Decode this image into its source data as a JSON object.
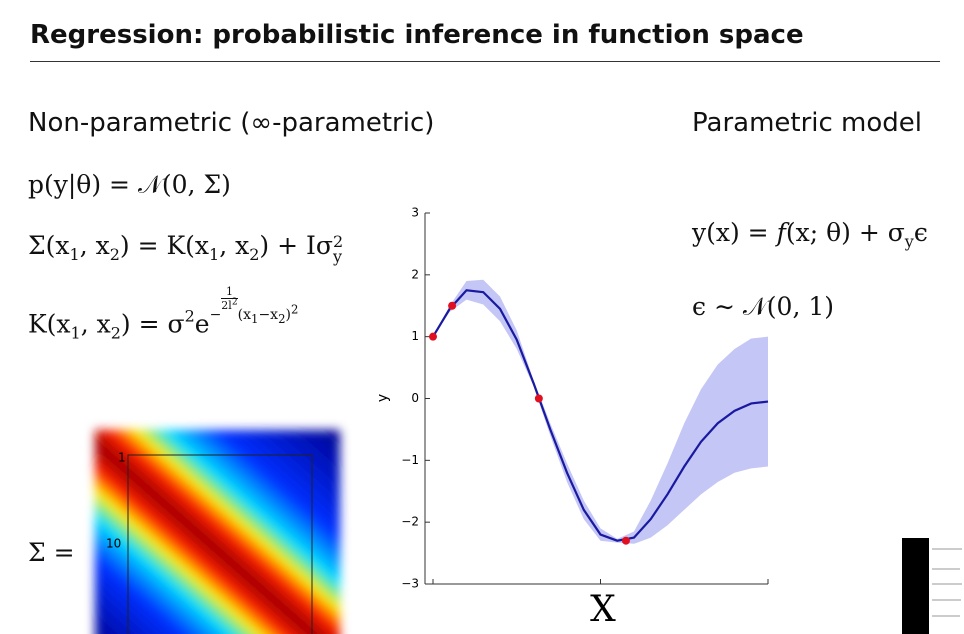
{
  "header": {
    "title": "Regression: probabilistic inference in function space"
  },
  "left": {
    "heading": "Non-parametric (∞-parametric)",
    "eq1": [
      "p(y|θ) = 𝒩(0, Σ)"
    ],
    "eq2": [
      "Σ(x",
      "1",
      ", x",
      "2",
      ") = K(x",
      "1",
      ", x",
      "2",
      ") + Iσ",
      "2",
      "y"
    ],
    "eq3": [
      "K(x",
      "1",
      ", x",
      "2",
      ") = σ",
      "2",
      "e",
      "−",
      "1",
      "2l",
      "2",
      "(x",
      "1",
      "−x",
      "2",
      ")",
      "2"
    ],
    "sigma_label": "Σ =",
    "matrix_ticks": [
      "1",
      "10"
    ]
  },
  "right": {
    "heading": "Parametric model",
    "eq1": [
      "y(x) = ",
      "f",
      "(x; θ) + σ",
      "y",
      "ϵ"
    ],
    "eq2": [
      "ϵ ∼ 𝒩(0, 1)"
    ]
  },
  "chart_data": {
    "type": "line",
    "xlabel": "X",
    "ylabel": "y",
    "xlim": [
      0,
      10
    ],
    "ylim": [
      -3,
      3
    ],
    "xticks": [
      0,
      5,
      10
    ],
    "yticks": [
      3,
      2,
      1,
      0,
      {
        "value": -1,
        "label": "−1"
      },
      {
        "value": -2,
        "label": "−2"
      },
      {
        "value": -3,
        "label": "−3"
      }
    ],
    "x": [
      0,
      0.5,
      1,
      1.5,
      2,
      2.5,
      3,
      3.5,
      4,
      4.5,
      5,
      5.5,
      6,
      6.5,
      7,
      7.5,
      8,
      8.5,
      9,
      9.5,
      10
    ],
    "mean": [
      1.0,
      1.45,
      1.75,
      1.72,
      1.45,
      0.95,
      0.25,
      -0.5,
      -1.2,
      -1.8,
      -2.2,
      -2.3,
      -2.25,
      -1.95,
      -1.55,
      -1.1,
      -0.7,
      -0.4,
      -0.2,
      -0.08,
      -0.05
    ],
    "upper": [
      1.0,
      1.5,
      1.9,
      1.92,
      1.65,
      1.1,
      0.3,
      -0.4,
      -1.05,
      -1.65,
      -2.1,
      -2.27,
      -2.15,
      -1.65,
      -1.05,
      -0.4,
      0.15,
      0.55,
      0.8,
      0.97,
      1.0
    ],
    "lower": [
      1.0,
      1.4,
      1.6,
      1.52,
      1.25,
      0.8,
      0.2,
      -0.6,
      -1.35,
      -1.95,
      -2.3,
      -2.33,
      -2.35,
      -2.25,
      -2.05,
      -1.8,
      -1.55,
      -1.35,
      -1.2,
      -1.13,
      -1.1
    ],
    "points": {
      "x": [
        0,
        0.57,
        3.16,
        5.76
      ],
      "values": [
        1.0,
        1.5,
        0.0,
        -2.3
      ]
    },
    "mean_color": "#1a1aa0",
    "band_color": "#c4c6f5",
    "point_color": "#e01020"
  }
}
